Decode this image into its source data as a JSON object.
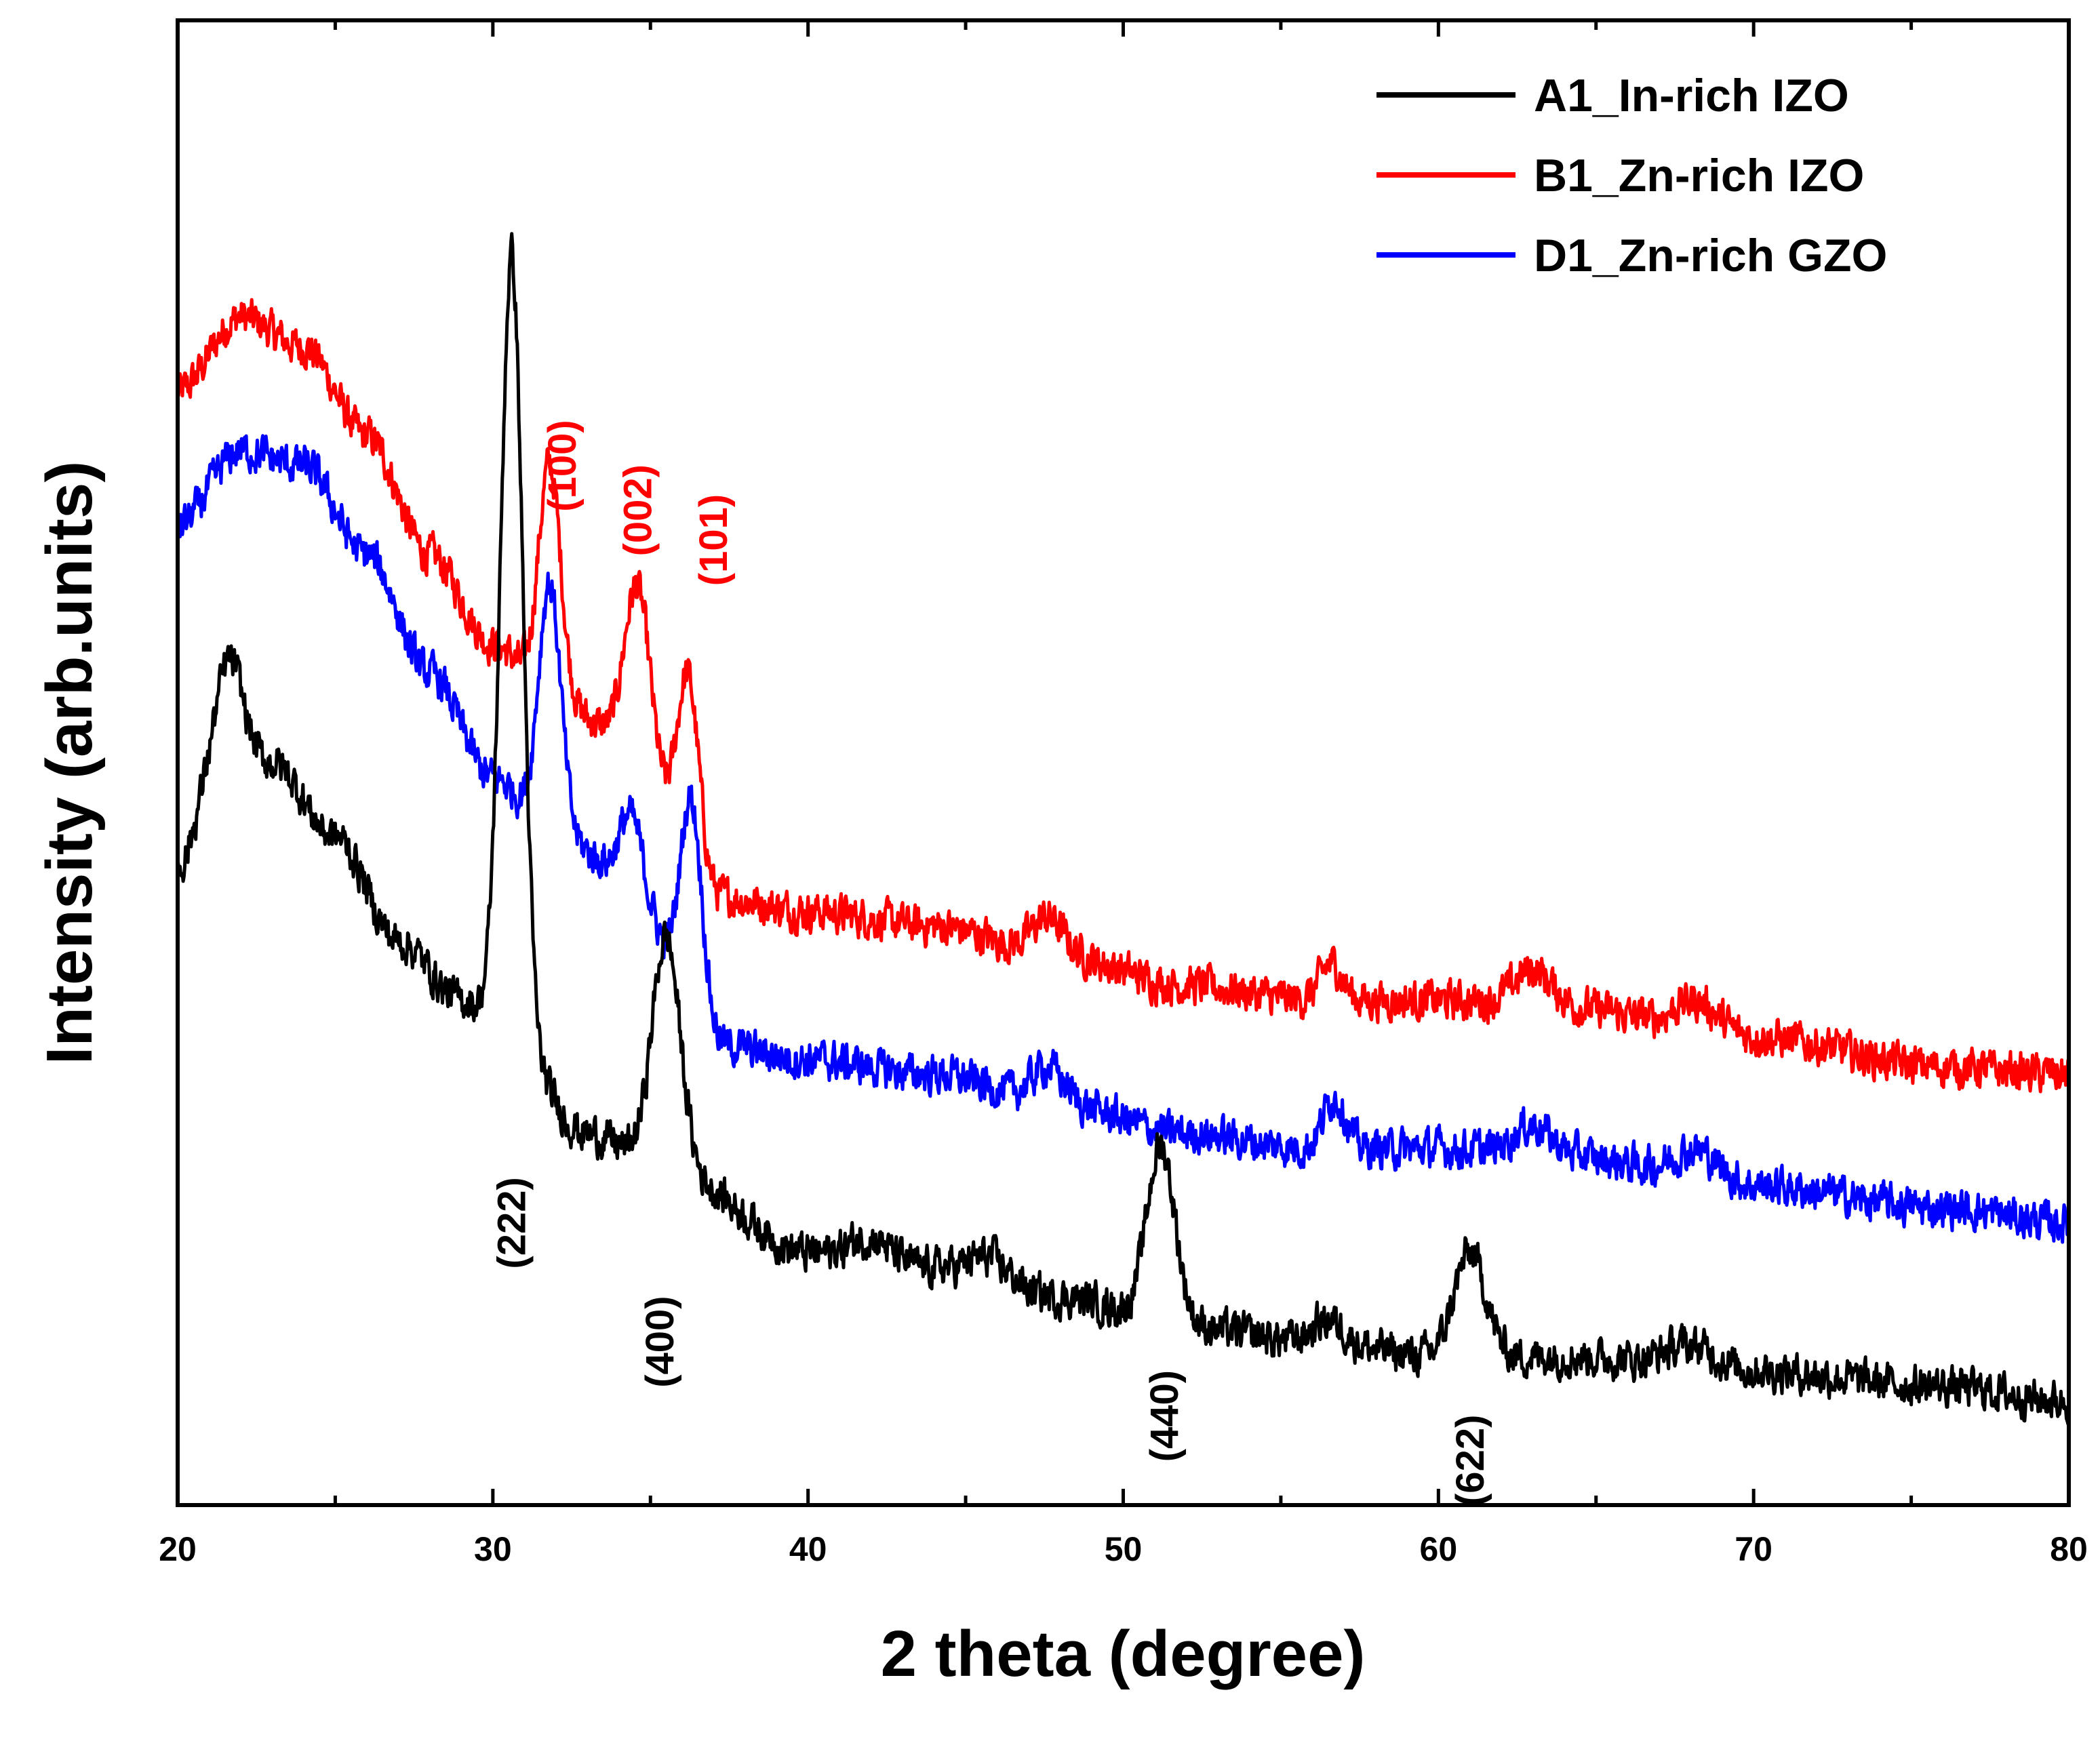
{
  "chart_data": {
    "type": "line",
    "title": "",
    "xlabel": "2 theta (degree)",
    "ylabel": "Intensity (arb.units)",
    "xlim": [
      20,
      80
    ],
    "ylim": [
      0,
      100
    ],
    "xticks": [
      20,
      30,
      40,
      50,
      60,
      70,
      80
    ],
    "yticks_shown": false,
    "grid": false,
    "legend": {
      "position": "top-right"
    },
    "series": [
      {
        "name": "A1_In-rich IZO",
        "color": "#000000",
        "baseline_points": [
          [
            20,
            43
          ],
          [
            21.5,
            53
          ],
          [
            23,
            50
          ],
          [
            25,
            45
          ],
          [
            27,
            38
          ],
          [
            29,
            34
          ],
          [
            30,
            33
          ],
          [
            33,
            25
          ],
          [
            36,
            22
          ],
          [
            40,
            17
          ],
          [
            44,
            16
          ],
          [
            48,
            14
          ],
          [
            52,
            12
          ],
          [
            56,
            11
          ],
          [
            60,
            10
          ],
          [
            64,
            10
          ],
          [
            70,
            9
          ],
          [
            76,
            8
          ],
          [
            80,
            7
          ]
        ],
        "peaks": [
          [
            21.7,
            4,
            0.35
          ],
          [
            30.6,
            52,
            0.35
          ],
          [
            35.5,
            16,
            0.45
          ],
          [
            42.0,
            1.5,
            0.6
          ],
          [
            45.8,
            1.5,
            0.6
          ],
          [
            51.2,
            12,
            0.45
          ],
          [
            56.5,
            1.5,
            0.5
          ],
          [
            61.0,
            7,
            0.5
          ],
          [
            68.0,
            1.5,
            0.8
          ]
        ]
      },
      {
        "name": "B1_Zn-rich IZO",
        "color": "#ff0000",
        "baseline_points": [
          [
            20,
            75
          ],
          [
            22,
            80
          ],
          [
            24,
            78
          ],
          [
            26,
            72
          ],
          [
            28,
            64
          ],
          [
            30,
            58
          ],
          [
            32,
            54
          ],
          [
            34,
            52
          ],
          [
            37,
            41
          ],
          [
            40,
            40
          ],
          [
            44,
            39
          ],
          [
            48,
            37
          ],
          [
            52,
            35
          ],
          [
            56,
            34
          ],
          [
            60,
            34
          ],
          [
            64,
            33.5
          ],
          [
            70,
            31.5
          ],
          [
            76,
            29.5
          ],
          [
            80,
            29
          ]
        ],
        "peaks": [
          [
            31.8,
            16,
            0.35
          ],
          [
            34.6,
            11,
            0.4
          ],
          [
            36.2,
            13,
            0.35
          ],
          [
            47.6,
            2.5,
            0.5
          ],
          [
            56.6,
            2.5,
            0.35
          ],
          [
            63.0,
            2.5,
            0.6
          ],
          [
            68.2,
            2.0,
            0.7
          ]
        ]
      },
      {
        "name": "D1_Zn-rich GZO",
        "color": "#0000ff",
        "baseline_points": [
          [
            20,
            66
          ],
          [
            22,
            71
          ],
          [
            24,
            70
          ],
          [
            26,
            64
          ],
          [
            28,
            56
          ],
          [
            30,
            49
          ],
          [
            32,
            45
          ],
          [
            34,
            43
          ],
          [
            37,
            31
          ],
          [
            40,
            30
          ],
          [
            44,
            29
          ],
          [
            48,
            27
          ],
          [
            52,
            25
          ],
          [
            56,
            24
          ],
          [
            60,
            24
          ],
          [
            64,
            23.5
          ],
          [
            70,
            21.5
          ],
          [
            76,
            20
          ],
          [
            80,
            19
          ]
        ],
        "peaks": [
          [
            31.8,
            17,
            0.35
          ],
          [
            34.4,
            4,
            0.35
          ],
          [
            36.3,
            15,
            0.35
          ],
          [
            47.6,
            2.5,
            0.5
          ],
          [
            56.7,
            3.5,
            0.35
          ],
          [
            63.0,
            2.0,
            0.6
          ],
          [
            68.2,
            2.0,
            0.7
          ]
        ]
      }
    ],
    "annotations": [
      {
        "text": "(222)",
        "x": 30.6,
        "y": 19,
        "color": "#000000",
        "rotation": -90
      },
      {
        "text": "(400)",
        "x": 35.3,
        "y": 11,
        "color": "#000000",
        "rotation": -90
      },
      {
        "text": "(440)",
        "x": 51.3,
        "y": 6,
        "color": "#000000",
        "rotation": -90
      },
      {
        "text": "(622)",
        "x": 61.0,
        "y": 3,
        "color": "#000000",
        "rotation": -90
      },
      {
        "text": "(100)",
        "x": 32.2,
        "y": 70,
        "color": "#ff0000",
        "rotation": -90
      },
      {
        "text": "(002)",
        "x": 34.6,
        "y": 67,
        "color": "#ff0000",
        "rotation": -90
      },
      {
        "text": "(101)",
        "x": 37.0,
        "y": 65,
        "color": "#ff0000",
        "rotation": -90
      }
    ]
  }
}
